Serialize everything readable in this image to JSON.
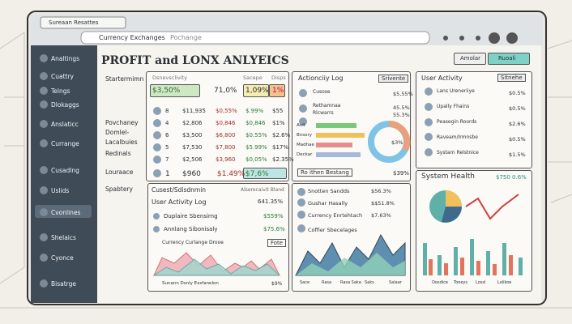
{
  "browser": {
    "tab": "Sureaan Resattes",
    "address_tabs": [
      "Currency Exchanges",
      "Pochange"
    ]
  },
  "sidebar": [
    "Analtings",
    "Cuattry",
    "Telngs",
    "Dlokaggs",
    "Anslaticc",
    "Currange",
    "Cusadlng",
    "Uslids",
    "Cvonlines",
    "Shelaics",
    "Cyonce",
    "Bisatrge"
  ],
  "header": {
    "title": "PROFIT and LONX ANLYEICS",
    "buttons": [
      "Amolar",
      "Ruoali"
    ]
  },
  "labels": [
    "Startermimn",
    "Povchaney",
    "Domlel-",
    "Lacalbuies",
    "Redinals",
    "Louraace",
    "Spabtery"
  ],
  "summary": {
    "headers": [
      "Dsnevsclivity",
      "Sacepe",
      "Disps"
    ],
    "rows": [
      [
        "$3,50%",
        "71,0%",
        "1,09%",
        "1%"
      ],
      [
        "8",
        "$11,935",
        "$0,55%",
        "$.99%",
        "$55"
      ],
      [
        "4",
        "$2,806",
        "$0,846",
        "$0,846",
        "$1%"
      ],
      [
        "6",
        "$3,500",
        "$6,800",
        "$0.55%",
        "$2.6%"
      ],
      [
        "5",
        "$7,530",
        "$7,800",
        "$5.99%",
        "$17%"
      ],
      [
        "7",
        "$2,506",
        "$3,960",
        "$0,05%",
        "$2.35%"
      ],
      [
        "1",
        "$960",
        "$1.49%",
        "$7,6%"
      ]
    ]
  },
  "activity_panel": {
    "head": [
      "Cusest/Sdisdnmin",
      "Alserecaivit Bland"
    ],
    "log": [
      "User Activity Log",
      "641.35%"
    ],
    "rows": [
      [
        "Duplaire Sbensirng",
        "$559%"
      ],
      [
        "Annlang Sibonisaly",
        "$75.6%"
      ]
    ],
    "chart_title": "Currency Curlange Drooe",
    "button": "Fote",
    "footer": [
      "Sunann Dsnly Exsfanelon",
      "$9%"
    ]
  },
  "action_log": {
    "title": "Actionciiy Log",
    "button": "Srivente",
    "rows": [
      [
        "Cusose",
        "$5,55%"
      ],
      [
        "Rethamnaa",
        "45.5%"
      ],
      [
        "Rlcwarrs",
        "55.3%"
      ]
    ],
    "bar_labels": [
      "Anlt",
      "Bnsory",
      "Madhae",
      "Deckar"
    ],
    "donut_label": "$3%",
    "footer": [
      "Ro ithen Bestang",
      "$39%"
    ]
  },
  "sources": {
    "rows": [
      [
        "Snotten Sandds",
        "$56.3%"
      ],
      [
        "Gushar Hasally",
        "$$51.8%"
      ],
      [
        "Currency Enrtehtach",
        "$7.63%"
      ],
      [
        "Coffier Sbecelages"
      ]
    ],
    "axis": [
      "Sace",
      "Rasa",
      "Rasa Saka",
      "Saks",
      "Salaar"
    ]
  },
  "user_activity": {
    "title": "User Activity",
    "button": "Sitnehe",
    "rows": [
      [
        "Lans Ureneriiye",
        "$0.5%"
      ],
      [
        "Upally Fhains",
        "$0.5%"
      ],
      [
        "Peasegin Roords",
        "$2.6%"
      ],
      [
        "Raveam/Irmnsbe",
        "$0.5%"
      ],
      [
        "Systarn Relstnice",
        "$1.5%"
      ]
    ]
  },
  "system_health": {
    "title": "System Health",
    "value": "$750 0.6%",
    "axis": [
      "Oosdice",
      "Tooeys",
      "Lossl",
      "Lolikoe"
    ]
  }
}
